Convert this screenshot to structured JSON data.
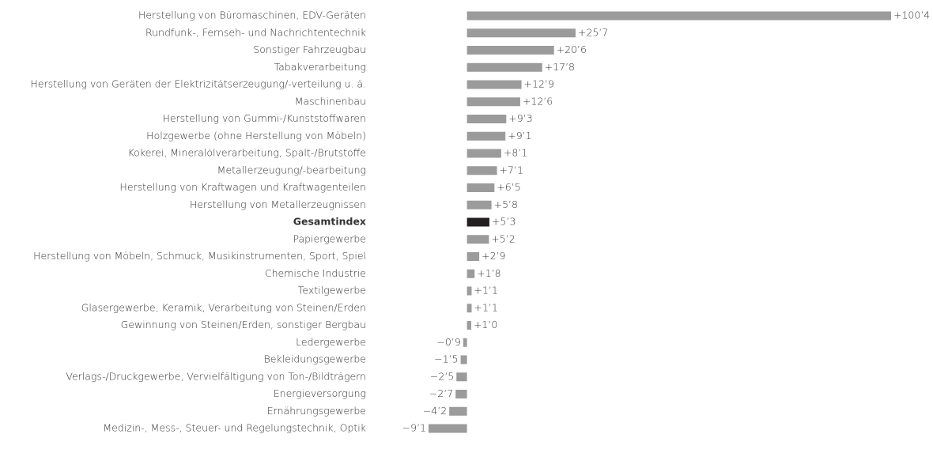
{
  "chart_data": {
    "type": "hbar",
    "categories": [
      "Herstellung von Büromaschinen, EDV-Geräten",
      "Rundfunk-, Fernseh- und Nachrichtentechnik",
      "Sonstiger Fahrzeugbau",
      "Tabakverarbeitung",
      "Herstellung von Geräten der Elektrizitätserzeugung/-verteilung u. ä.",
      "Maschinenbau",
      "Herstellung von Gummi-/Kunststoffwaren",
      "Holzgewerbe (ohne Herstellung von Möbeln)",
      "Kokerei, Mineralölverarbeitung, Spalt-/Brutstoffe",
      "Metallerzeugung/-bearbeitung",
      "Herstellung von Kraftwagen und Kraftwagenteilen",
      "Herstellung von Metallerzeugnissen",
      "Gesamtindex",
      "Papiergewerbe",
      "Herstellung von Möbeln, Schmuck, Musikinstrumenten, Sport, Spiel",
      "Chemische Industrie",
      "Textilgewerbe",
      "Glasergewerbe, Keramik, Verarbeitung von Steinen/Erden",
      "Gewinnung von Steinen/Erden, sonstiger Bergbau",
      "Ledergewerbe",
      "Bekleidungsgewerbe",
      "Verlags-/Druckgewerbe, Vervielfältigung von Ton-/Bildträgern",
      "Energieversorgung",
      "Ernährungsgewerbe",
      "Medizin-, Mess-, Steuer- und Regelungstechnik, Optik"
    ],
    "values": [
      100.4,
      25.7,
      20.6,
      17.8,
      12.9,
      12.6,
      9.3,
      9.1,
      8.1,
      7.1,
      6.5,
      5.8,
      5.3,
      5.2,
      2.9,
      1.8,
      1.1,
      1.1,
      1.0,
      -0.9,
      -1.5,
      -2.5,
      -2.7,
      -4.2,
      -9.1
    ],
    "value_labels": [
      "+100’4",
      "+25’7",
      "+20’6",
      "+17’8",
      "+12’9",
      "+12’6",
      "+9’3",
      "+9’1",
      "+8’1",
      "+7’1",
      "+6’5",
      "+5’8",
      "+5’3",
      "+5’2",
      "+2’9",
      "+1’8",
      "+1’1",
      "+1’1",
      "+1’0",
      "−0’9",
      "−1’5",
      "−2’5",
      "−2’7",
      "−4’2",
      "−9’1"
    ],
    "color": "#9b9b9b",
    "highlight_index": 12,
    "highlight_color": "#231f20"
  }
}
